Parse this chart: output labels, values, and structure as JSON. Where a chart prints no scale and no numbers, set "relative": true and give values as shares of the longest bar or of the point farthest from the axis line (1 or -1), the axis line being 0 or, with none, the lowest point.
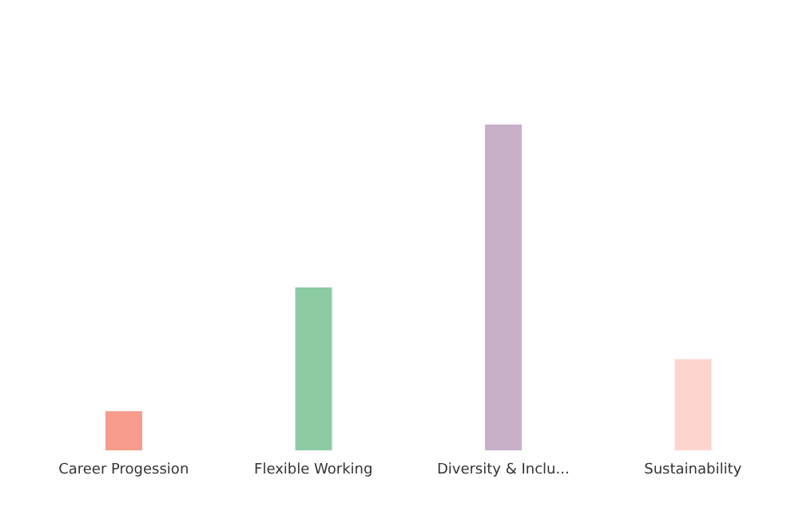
{
  "chart_data": {
    "type": "bar",
    "relative": true,
    "categories": [
      "Career Progession",
      "Flexible Working",
      "Diversity & Inclu...",
      "Sustainability"
    ],
    "values": [
      0.12,
      0.5,
      1,
      0.28
    ],
    "colors": [
      "#f79c8d",
      "#8ccba4",
      "#c8b0c9",
      "#fdd5ce"
    ]
  }
}
